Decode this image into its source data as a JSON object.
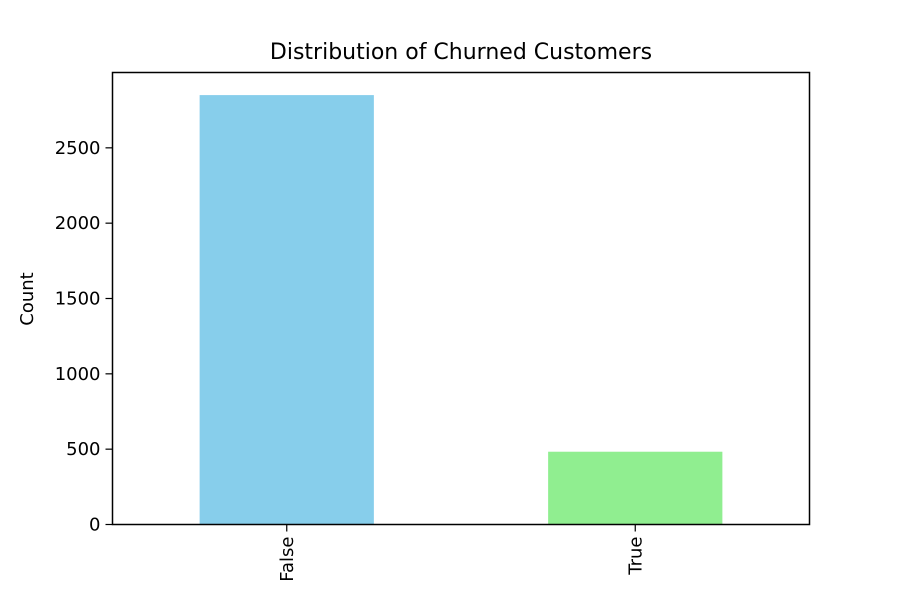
{
  "chart_data": {
    "type": "bar",
    "title": "Distribution of Churned Customers",
    "xlabel": "",
    "ylabel": "Count",
    "categories": [
      "False",
      "True"
    ],
    "values": [
      2850,
      483
    ],
    "colors": [
      "#87ceeb",
      "#90ee90"
    ],
    "ylim": [
      0,
      3000
    ],
    "yticks": [
      0,
      500,
      1000,
      1500,
      2000,
      2500
    ],
    "grid": false,
    "legend": "none"
  }
}
